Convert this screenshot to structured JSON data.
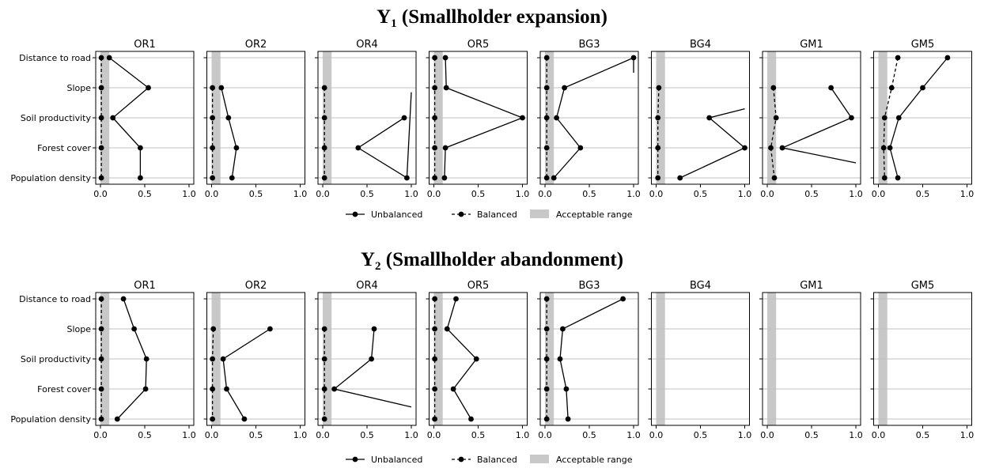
{
  "figure": {
    "panel_titles": [
      "OR1",
      "OR2",
      "OR4",
      "OR5",
      "BG3",
      "BG4",
      "GM1",
      "GM5"
    ],
    "variables": [
      "Distance to road",
      "Slope",
      "Soil productivity",
      "Forest cover",
      "Population density"
    ],
    "x_ticks": [
      "0.0",
      "0.5",
      "1.0"
    ],
    "legend": {
      "unbalanced": "Unbalanced",
      "balanced": "Balanced",
      "acceptable": "Acceptable range"
    },
    "rows": [
      {
        "title_main": "Y",
        "title_sub": "1",
        "title_rest": " (Smallholder expansion)"
      },
      {
        "title_main": "Y",
        "title_sub": "2",
        "title_rest": " (Smallholder abandonment)"
      }
    ]
  },
  "chart_data": [
    {
      "type": "line",
      "title": "Y1 (Smallholder expansion)",
      "xlim": [
        0,
        1
      ],
      "acceptable_range": [
        0,
        0.1
      ],
      "categories": [
        "Distance to road",
        "Slope",
        "Soil productivity",
        "Forest cover",
        "Population density"
      ],
      "panels": [
        {
          "title": "OR1",
          "series": [
            {
              "name": "Unbalanced",
              "values": [
                0.1,
                0.54,
                0.14,
                0.45,
                0.45
              ]
            },
            {
              "name": "Balanced",
              "values": [
                0.01,
                0.01,
                0.01,
                0.01,
                0.01
              ]
            }
          ]
        },
        {
          "title": "OR2",
          "series": [
            {
              "name": "Unbalanced",
              "values": [
                null,
                0.11,
                0.19,
                0.28,
                0.23
              ]
            },
            {
              "name": "Balanced",
              "values": [
                null,
                0.01,
                0.01,
                0.01,
                0.01
              ]
            }
          ]
        },
        {
          "title": "OR4",
          "series": [
            {
              "name": "Unbalanced",
              "values": [
                null,
                null,
                0.92,
                0.4,
                0.95
              ],
              "extends_to": [
                1.0,
                1.15
              ]
            },
            {
              "name": "Balanced",
              "values": [
                null,
                0.02,
                0.02,
                0.02,
                0.02
              ]
            }
          ]
        },
        {
          "title": "OR5",
          "series": [
            {
              "name": "Unbalanced",
              "values": [
                0.13,
                0.14,
                1.0,
                0.13,
                0.12
              ]
            },
            {
              "name": "Balanced",
              "values": [
                0.01,
                0.01,
                0.01,
                0.01,
                0.01
              ]
            }
          ]
        },
        {
          "title": "BG3",
          "series": [
            {
              "name": "Unbalanced",
              "values": [
                1.0,
                0.22,
                0.13,
                0.4,
                0.1
              ],
              "starts_from": [
                1.0,
                0.5
              ]
            },
            {
              "name": "Balanced",
              "values": [
                0.02,
                0.02,
                0.02,
                0.02,
                0.02
              ]
            }
          ]
        },
        {
          "title": "BG4",
          "series": [
            {
              "name": "Unbalanced",
              "values": [
                null,
                null,
                0.6,
                1.0,
                0.27
              ],
              "starts_from": [
                1.0,
                1.7
              ]
            },
            {
              "name": "Balanced",
              "values": [
                null,
                0.03,
                0.02,
                0.02,
                0.02
              ]
            }
          ]
        },
        {
          "title": "GM1",
          "series": [
            {
              "name": "Unbalanced",
              "values": [
                null,
                0.72,
                0.95,
                0.17,
                null
              ],
              "extends_to": [
                1.0,
                3.5
              ]
            },
            {
              "name": "Balanced",
              "values": [
                null,
                0.07,
                0.1,
                0.04,
                0.08
              ]
            }
          ]
        },
        {
          "title": "GM5",
          "series": [
            {
              "name": "Unbalanced",
              "values": [
                0.78,
                0.5,
                0.23,
                0.13,
                0.22
              ]
            },
            {
              "name": "Balanced",
              "values": [
                0.22,
                0.15,
                0.07,
                0.06,
                0.07
              ]
            }
          ]
        }
      ]
    },
    {
      "type": "line",
      "title": "Y2 (Smallholder abandonment)",
      "xlim": [
        0,
        1
      ],
      "acceptable_range": [
        0,
        0.1
      ],
      "categories": [
        "Distance to road",
        "Slope",
        "Soil productivity",
        "Forest cover",
        "Population density"
      ],
      "panels": [
        {
          "title": "OR1",
          "series": [
            {
              "name": "Unbalanced",
              "values": [
                0.26,
                0.38,
                0.52,
                0.51,
                0.19
              ]
            },
            {
              "name": "Balanced",
              "values": [
                0.01,
                0.01,
                0.01,
                0.01,
                0.01
              ]
            }
          ]
        },
        {
          "title": "OR2",
          "series": [
            {
              "name": "Unbalanced",
              "values": [
                null,
                0.66,
                0.13,
                0.17,
                0.37
              ]
            },
            {
              "name": "Balanced",
              "values": [
                null,
                0.02,
                0.01,
                0.01,
                0.01
              ]
            }
          ]
        },
        {
          "title": "OR4",
          "series": [
            {
              "name": "Unbalanced",
              "values": [
                null,
                0.58,
                0.55,
                0.13,
                null
              ],
              "extends_to": [
                1.0,
                3.6
              ]
            },
            {
              "name": "Balanced",
              "values": [
                null,
                0.02,
                0.02,
                0.02,
                0.02
              ]
            }
          ]
        },
        {
          "title": "OR5",
          "series": [
            {
              "name": "Unbalanced",
              "values": [
                0.25,
                0.15,
                0.48,
                0.22,
                0.42
              ]
            },
            {
              "name": "Balanced",
              "values": [
                0.01,
                0.01,
                0.01,
                0.01,
                0.01
              ]
            }
          ]
        },
        {
          "title": "BG3",
          "series": [
            {
              "name": "Unbalanced",
              "values": [
                0.88,
                0.2,
                0.17,
                0.24,
                0.26
              ]
            },
            {
              "name": "Balanced",
              "values": [
                0.02,
                0.02,
                0.02,
                0.02,
                0.02
              ]
            }
          ]
        },
        {
          "title": "BG4",
          "series": []
        },
        {
          "title": "GM1",
          "series": []
        },
        {
          "title": "GM5",
          "series": []
        }
      ]
    }
  ]
}
